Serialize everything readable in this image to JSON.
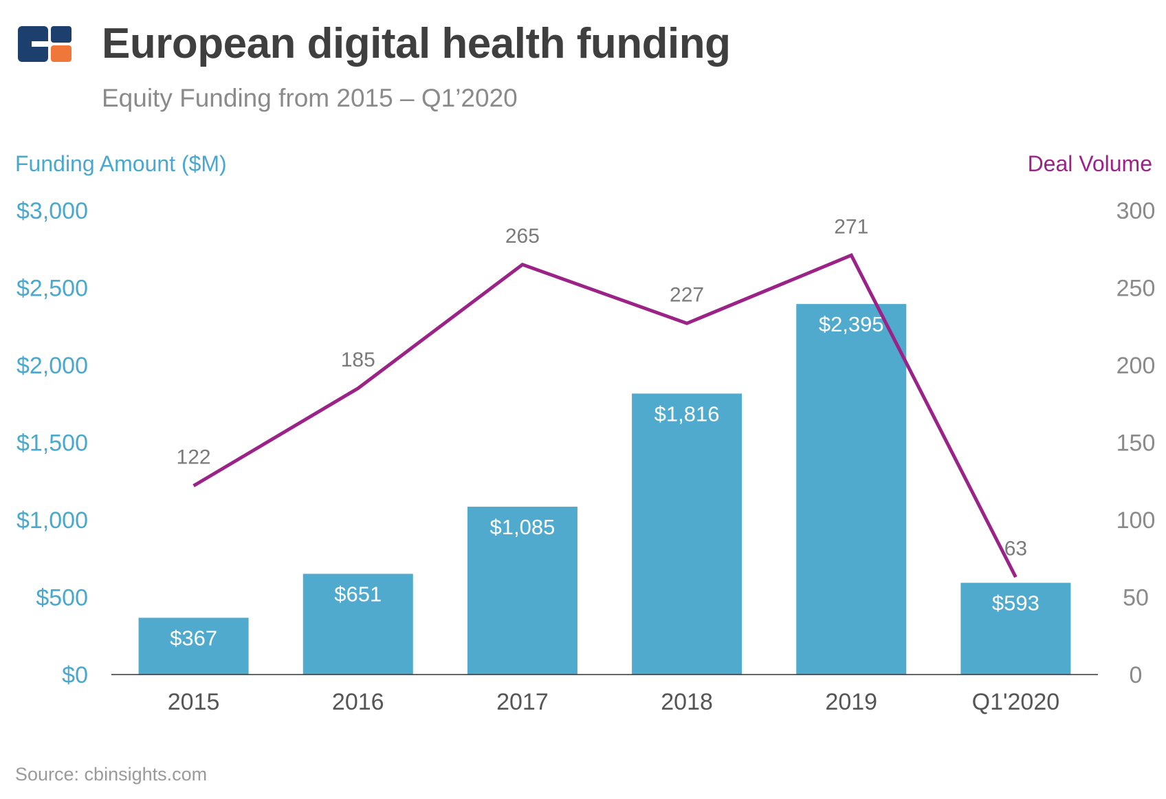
{
  "header": {
    "logo_icon": "cb-insights-logo-icon",
    "title": "European digital health funding",
    "subtitle": "Equity Funding from 2015 – Q1’2020"
  },
  "footer": {
    "source": "Source: cbinsights.com"
  },
  "colors": {
    "bar": "#4faace",
    "line": "#9b2388",
    "left_axis": "#4aa8cf",
    "right_axis": "#8a8a8a",
    "logo_navy": "#1c3f6e",
    "logo_orange": "#f0773a"
  },
  "chart_data": {
    "type": "bar",
    "categories": [
      "2015",
      "2016",
      "2017",
      "2018",
      "2019",
      "Q1'2020"
    ],
    "series": [
      {
        "type": "bar",
        "axis": "left",
        "values": [
          367,
          651,
          1085,
          1816,
          2395,
          593
        ],
        "labels": [
          "$367",
          "$651",
          "$1,085",
          "$1,816",
          "$2,395",
          "$593"
        ]
      },
      {
        "type": "line",
        "axis": "right",
        "values": [
          122,
          185,
          265,
          227,
          271,
          63
        ],
        "labels": [
          "122",
          "185",
          "265",
          "227",
          "271",
          "63"
        ]
      }
    ],
    "y_left": {
      "label": "Funding Amount ($M)",
      "ylim": [
        0,
        3000
      ],
      "ticks": [
        0,
        500,
        1000,
        1500,
        2000,
        2500,
        3000
      ],
      "tick_labels": [
        "$0",
        "$500",
        "$1,000",
        "$1,500",
        "$2,000",
        "$2,500",
        "$3,000"
      ]
    },
    "y_right": {
      "label": "Deal Volume",
      "ylim": [
        0,
        300
      ],
      "ticks": [
        0,
        50,
        100,
        150,
        200,
        250,
        300
      ],
      "tick_labels": [
        "0",
        "50",
        "100",
        "150",
        "200",
        "250",
        "300"
      ]
    },
    "grid": false
  }
}
